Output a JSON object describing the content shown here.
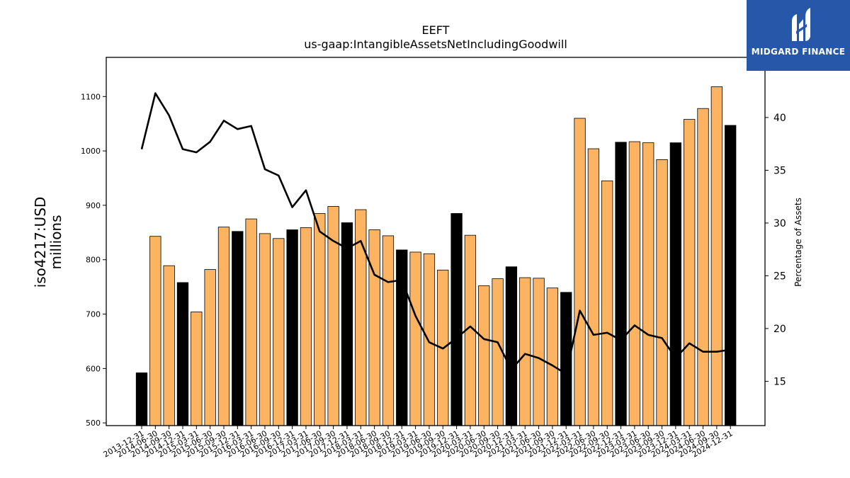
{
  "chart_data": {
    "type": "bar",
    "title": "EEFT",
    "subtitle": "us-gaap:IntangibleAssetsNetIncludingGoodwill",
    "ylabel": "iso4217:USD\nmillions",
    "y2label": "Percentage of Assets",
    "ylim": [
      495,
      1172
    ],
    "y2lim": [
      10.8,
      45.7
    ],
    "yticks": [
      500,
      600,
      700,
      800,
      900,
      1000,
      1100
    ],
    "y2ticks": [
      15,
      20,
      25,
      30,
      35,
      40
    ],
    "categories": [
      "2013-12-31",
      "2014-06-30",
      "2014-09-30",
      "2014-12-31",
      "2015-03-31",
      "2015-06-30",
      "2015-09-30",
      "2015-12-31",
      "2016-03-31",
      "2016-06-30",
      "2016-09-30",
      "2016-12-31",
      "2017-03-31",
      "2017-06-30",
      "2017-09-30",
      "2017-12-31",
      "2018-03-31",
      "2018-06-30",
      "2018-09-30",
      "2018-12-31",
      "2019-03-31",
      "2019-06-30",
      "2019-09-30",
      "2019-12-31",
      "2020-03-31",
      "2020-06-30",
      "2020-09-30",
      "2020-12-31",
      "2021-03-31",
      "2021-06-30",
      "2021-09-30",
      "2021-12-31",
      "2022-03-31",
      "2022-06-30",
      "2022-09-30",
      "2022-12-31",
      "2023-03-31",
      "2023-06-30",
      "2023-09-30",
      "2023-12-31",
      "2024-03-31",
      "2024-06-30",
      "2024-09-30",
      "2024-12-31"
    ],
    "series": [
      {
        "kind": "bar",
        "values": [
          592,
          843,
          789,
          758,
          704,
          782,
          860,
          852,
          875,
          848,
          839,
          855,
          859,
          885,
          898,
          868,
          892,
          855,
          844,
          818,
          814,
          811,
          781,
          885,
          845,
          752,
          765,
          787,
          767,
          766,
          748,
          740,
          1060,
          1004,
          945,
          1016,
          1017,
          1015,
          984,
          1015,
          1058,
          1078,
          1118,
          1047
        ],
        "year_end": [
          true,
          false,
          false,
          true,
          false,
          false,
          false,
          true,
          false,
          false,
          false,
          true,
          false,
          false,
          false,
          true,
          false,
          false,
          false,
          true,
          false,
          false,
          false,
          true,
          false,
          false,
          false,
          true,
          false,
          false,
          false,
          true,
          false,
          false,
          false,
          true,
          false,
          false,
          false,
          true,
          false,
          false,
          false,
          true
        ]
      },
      {
        "kind": "line",
        "axis": "right",
        "values": [
          37.0,
          42.3,
          40.2,
          37.0,
          36.7,
          37.7,
          39.7,
          38.9,
          39.2,
          35.1,
          34.5,
          31.5,
          33.1,
          29.2,
          28.3,
          27.6,
          28.3,
          25.1,
          24.4,
          24.6,
          21.2,
          18.7,
          18.1,
          19.1,
          20.2,
          19.0,
          18.7,
          16.1,
          17.6,
          17.2,
          16.5,
          15.7,
          21.7,
          19.4,
          19.6,
          18.9,
          20.3,
          19.4,
          19.1,
          17.2,
          18.6,
          17.8,
          17.8,
          18.0
        ]
      }
    ],
    "colors": {
      "bar": "#fdb462",
      "bar_year_end": "#000000",
      "line": "#000000"
    }
  },
  "logo": {
    "text": "MIDGARD FINANCE"
  }
}
